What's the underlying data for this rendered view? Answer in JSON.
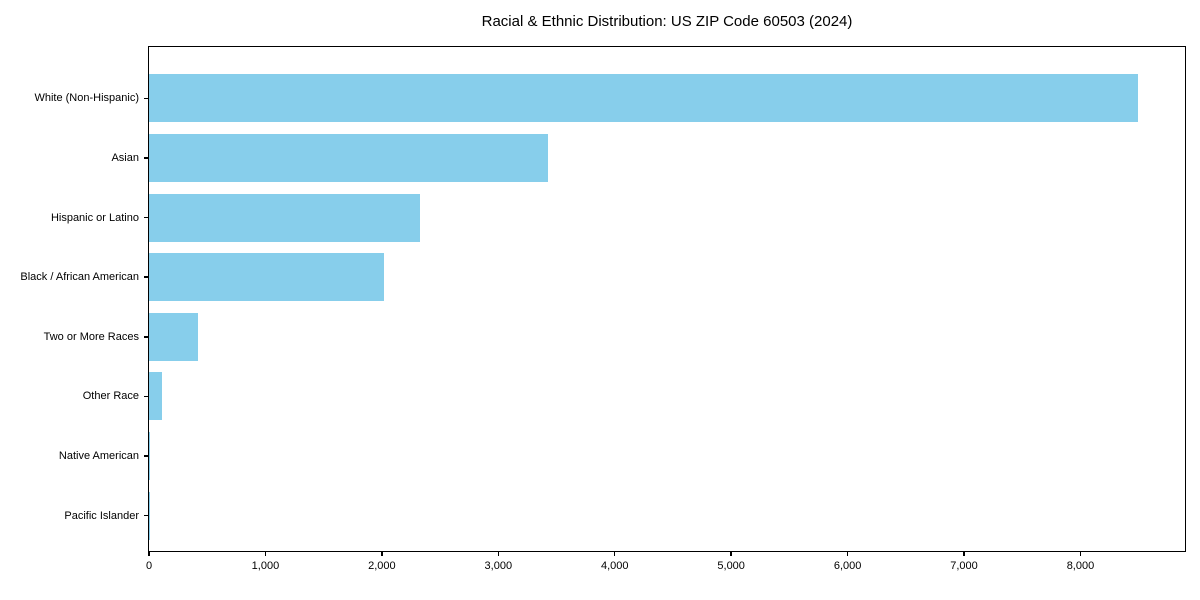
{
  "chart_data": {
    "type": "bar",
    "orientation": "horizontal",
    "title": "Racial & Ethnic Distribution: US ZIP Code 60503 (2024)",
    "categories": [
      "White (Non-Hispanic)",
      "Asian",
      "Hispanic or Latino",
      "Black / African American",
      "Two or More Races",
      "Other Race",
      "Native American",
      "Pacific Islander"
    ],
    "values": [
      8490,
      3430,
      2330,
      2020,
      420,
      110,
      12,
      3
    ],
    "xlabel": "",
    "ylabel": "",
    "xlim": [
      0,
      8915
    ],
    "xticks": [
      0,
      1000,
      2000,
      3000,
      4000,
      5000,
      6000,
      7000,
      8000
    ],
    "xtick_labels": [
      "0",
      "1,000",
      "2,000",
      "3,000",
      "4,000",
      "5,000",
      "6,000",
      "7,000",
      "8,000"
    ],
    "grid": false,
    "legend": false,
    "bar_color": "#87CEEB",
    "axis_color": "#000000",
    "background_color": "#FFFFFF"
  }
}
